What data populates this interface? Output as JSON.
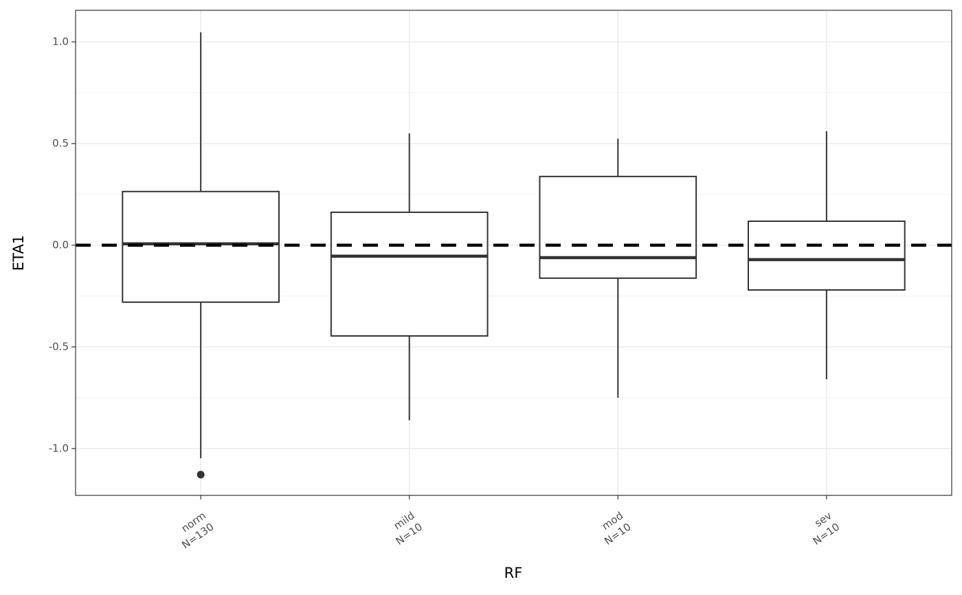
{
  "chart_data": {
    "type": "box",
    "x_label": "RF",
    "y_label": "ETA1",
    "categories": [
      "norm",
      "mild",
      "mod",
      "sev"
    ],
    "n_labels": [
      "N=130",
      "N=10",
      "N=10",
      "N=10"
    ],
    "boxes": [
      {
        "whisker_low": -1.047,
        "q1": -0.28,
        "median": 0.007,
        "q3": 0.264,
        "whisker_high": 1.047,
        "outliers": [
          -1.128
        ]
      },
      {
        "whisker_low": -0.861,
        "q1": -0.446,
        "median": -0.054,
        "q3": 0.162,
        "whisker_high": 0.55,
        "outliers": []
      },
      {
        "whisker_low": -0.75,
        "q1": -0.162,
        "median": -0.061,
        "q3": 0.338,
        "whisker_high": 0.524,
        "outliers": []
      },
      {
        "whisker_low": -0.659,
        "q1": -0.22,
        "median": -0.071,
        "q3": 0.118,
        "whisker_high": 0.561,
        "outliers": []
      }
    ],
    "color": "#333333",
    "reference_line": 0,
    "ylim": [
      -1.23,
      1.155
    ],
    "yticks": [
      {
        "value": -1,
        "label": "-1.0"
      },
      -0.5,
      {
        "value": 0,
        "label": "0.0"
      },
      0.5,
      {
        "value": 1,
        "label": "1.0"
      }
    ],
    "grid": true
  }
}
